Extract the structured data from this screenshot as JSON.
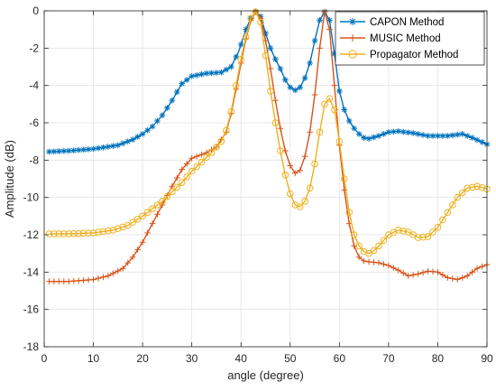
{
  "chart_data": {
    "type": "line",
    "title": "",
    "xlabel": "angle (degree)",
    "ylabel": "Amplitude (dB)",
    "xlim": [
      0,
      90
    ],
    "ylim": [
      -18,
      0
    ],
    "xticks": [
      0,
      10,
      20,
      30,
      40,
      50,
      60,
      70,
      80,
      90
    ],
    "yticks": [
      0,
      -2,
      -4,
      -6,
      -8,
      -10,
      -12,
      -14,
      -16,
      -18
    ],
    "grid": true,
    "legend_position": "top-right",
    "series": [
      {
        "name": "CAPON Method",
        "color": "#0072BD",
        "marker": "star",
        "points": [
          [
            1,
            -7.55
          ],
          [
            5,
            -7.5
          ],
          [
            10,
            -7.4
          ],
          [
            15,
            -7.2
          ],
          [
            18,
            -6.9
          ],
          [
            20,
            -6.6
          ],
          [
            22,
            -6.2
          ],
          [
            24,
            -5.6
          ],
          [
            26,
            -4.8
          ],
          [
            28,
            -3.9
          ],
          [
            30,
            -3.5
          ],
          [
            33,
            -3.35
          ],
          [
            36,
            -3.3
          ],
          [
            38,
            -3.0
          ],
          [
            39.5,
            -2.2
          ],
          [
            41,
            -1.0
          ],
          [
            42,
            -0.4
          ],
          [
            43,
            -0.05
          ],
          [
            44,
            -0.3
          ],
          [
            45,
            -1.2
          ],
          [
            46,
            -2.0
          ],
          [
            47,
            -2.6
          ],
          [
            48,
            -3.1
          ],
          [
            49,
            -3.7
          ],
          [
            50,
            -4.1
          ],
          [
            51,
            -4.25
          ],
          [
            52,
            -4.1
          ],
          [
            53,
            -3.6
          ],
          [
            54,
            -2.8
          ],
          [
            55,
            -1.6
          ],
          [
            56,
            -0.5
          ],
          [
            57,
            -0.05
          ],
          [
            58,
            -0.5
          ],
          [
            59,
            -2.3
          ],
          [
            60,
            -4.3
          ],
          [
            61,
            -5.3
          ],
          [
            62,
            -5.9
          ],
          [
            63,
            -6.3
          ],
          [
            64,
            -6.6
          ],
          [
            65,
            -6.8
          ],
          [
            66,
            -6.85
          ],
          [
            68,
            -6.7
          ],
          [
            70,
            -6.5
          ],
          [
            72,
            -6.45
          ],
          [
            75,
            -6.55
          ],
          [
            78,
            -6.7
          ],
          [
            82,
            -6.7
          ],
          [
            85,
            -6.6
          ],
          [
            87,
            -6.8
          ],
          [
            90,
            -7.15
          ]
        ]
      },
      {
        "name": "MUSIC Method",
        "color": "#D95319",
        "marker": "plus",
        "points": [
          [
            1,
            -14.5
          ],
          [
            5,
            -14.5
          ],
          [
            10,
            -14.4
          ],
          [
            13,
            -14.2
          ],
          [
            16,
            -13.8
          ],
          [
            18,
            -13.2
          ],
          [
            20,
            -12.4
          ],
          [
            22,
            -11.4
          ],
          [
            24,
            -10.4
          ],
          [
            26,
            -9.4
          ],
          [
            28,
            -8.5
          ],
          [
            30,
            -7.9
          ],
          [
            33,
            -7.6
          ],
          [
            35,
            -7.3
          ],
          [
            37,
            -6.5
          ],
          [
            38,
            -5.5
          ],
          [
            39,
            -4.2
          ],
          [
            40,
            -2.8
          ],
          [
            41,
            -1.5
          ],
          [
            42,
            -0.5
          ],
          [
            43,
            -0.05
          ],
          [
            44,
            -0.4
          ],
          [
            45,
            -1.6
          ],
          [
            46,
            -3.1
          ],
          [
            47,
            -4.8
          ],
          [
            48,
            -6.3
          ],
          [
            49,
            -7.5
          ],
          [
            50,
            -8.3
          ],
          [
            51,
            -8.7
          ],
          [
            52,
            -8.55
          ],
          [
            53,
            -7.8
          ],
          [
            54,
            -6.5
          ],
          [
            55,
            -4.5
          ],
          [
            56,
            -2.0
          ],
          [
            57,
            -0.05
          ],
          [
            58,
            -1.0
          ],
          [
            59,
            -4.0
          ],
          [
            60,
            -7.2
          ],
          [
            61,
            -9.6
          ],
          [
            62,
            -11.4
          ],
          [
            63,
            -12.6
          ],
          [
            64,
            -13.2
          ],
          [
            65,
            -13.4
          ],
          [
            66,
            -13.45
          ],
          [
            68,
            -13.5
          ],
          [
            70,
            -13.65
          ],
          [
            72,
            -13.9
          ],
          [
            74,
            -14.2
          ],
          [
            76,
            -14.1
          ],
          [
            78,
            -13.95
          ],
          [
            80,
            -14.0
          ],
          [
            82,
            -14.3
          ],
          [
            84,
            -14.4
          ],
          [
            86,
            -14.2
          ],
          [
            88,
            -13.8
          ],
          [
            90,
            -13.6
          ]
        ]
      },
      {
        "name": "Propagator Method",
        "color": "#EDB120",
        "marker": "circle",
        "points": [
          [
            1,
            -11.95
          ],
          [
            5,
            -11.95
          ],
          [
            10,
            -11.9
          ],
          [
            14,
            -11.75
          ],
          [
            17,
            -11.5
          ],
          [
            20,
            -11.0
          ],
          [
            22,
            -10.6
          ],
          [
            24,
            -10.2
          ],
          [
            26,
            -9.7
          ],
          [
            28,
            -9.2
          ],
          [
            30,
            -8.6
          ],
          [
            32,
            -8.1
          ],
          [
            34,
            -7.6
          ],
          [
            36,
            -7.0
          ],
          [
            37,
            -6.4
          ],
          [
            38,
            -5.4
          ],
          [
            39,
            -4.0
          ],
          [
            40,
            -2.6
          ],
          [
            41,
            -1.4
          ],
          [
            42,
            -0.4
          ],
          [
            43,
            -0.05
          ],
          [
            44,
            -0.6
          ],
          [
            45,
            -2.4
          ],
          [
            46,
            -4.3
          ],
          [
            47,
            -6.0
          ],
          [
            48,
            -7.5
          ],
          [
            49,
            -8.8
          ],
          [
            50,
            -9.8
          ],
          [
            51,
            -10.4
          ],
          [
            52,
            -10.5
          ],
          [
            53,
            -10.2
          ],
          [
            54,
            -9.5
          ],
          [
            55,
            -8.2
          ],
          [
            56,
            -6.5
          ],
          [
            57,
            -5.0
          ],
          [
            58,
            -4.7
          ],
          [
            59,
            -5.3
          ],
          [
            60,
            -7.0
          ],
          [
            61,
            -9.0
          ],
          [
            62,
            -10.8
          ],
          [
            63,
            -12.0
          ],
          [
            64,
            -12.6
          ],
          [
            65,
            -12.9
          ],
          [
            66,
            -13.0
          ],
          [
            67,
            -12.85
          ],
          [
            68,
            -12.6
          ],
          [
            70,
            -12.0
          ],
          [
            72,
            -11.75
          ],
          [
            74,
            -11.85
          ],
          [
            76,
            -12.15
          ],
          [
            78,
            -12.1
          ],
          [
            80,
            -11.6
          ],
          [
            82,
            -10.8
          ],
          [
            84,
            -10.0
          ],
          [
            86,
            -9.5
          ],
          [
            88,
            -9.4
          ],
          [
            90,
            -9.55
          ]
        ]
      }
    ]
  }
}
